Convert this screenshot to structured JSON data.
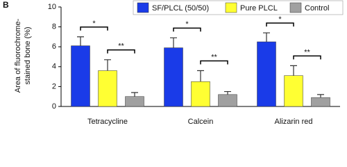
{
  "chart_data": {
    "type": "bar",
    "panel_label": "B",
    "y_label": [
      "Area of fluorochrome-",
      "stained bone (%)"
    ],
    "categories": [
      "Tetracycline",
      "Calcein",
      "Alizarin red"
    ],
    "series": [
      {
        "name": "SF/PLCL (50/50)",
        "color": "#1a3be8",
        "values": [
          6.1,
          5.9,
          6.5
        ],
        "errors": [
          0.9,
          1.0,
          0.9
        ]
      },
      {
        "name": "Pure PLCL",
        "color": "#ffff33",
        "values": [
          3.6,
          2.5,
          3.1
        ],
        "errors": [
          1.1,
          1.1,
          1.0
        ]
      },
      {
        "name": "Control",
        "color": "#a0a0a0",
        "values": [
          1.0,
          1.2,
          0.9
        ],
        "errors": [
          0.4,
          0.3,
          0.3
        ]
      }
    ],
    "annotations": [
      [
        "*",
        "**"
      ],
      [
        "*",
        "**"
      ],
      [
        "*",
        "**"
      ]
    ],
    "ylim": [
      0,
      10
    ],
    "yticks": [
      0,
      2,
      4,
      6,
      8,
      10
    ]
  }
}
